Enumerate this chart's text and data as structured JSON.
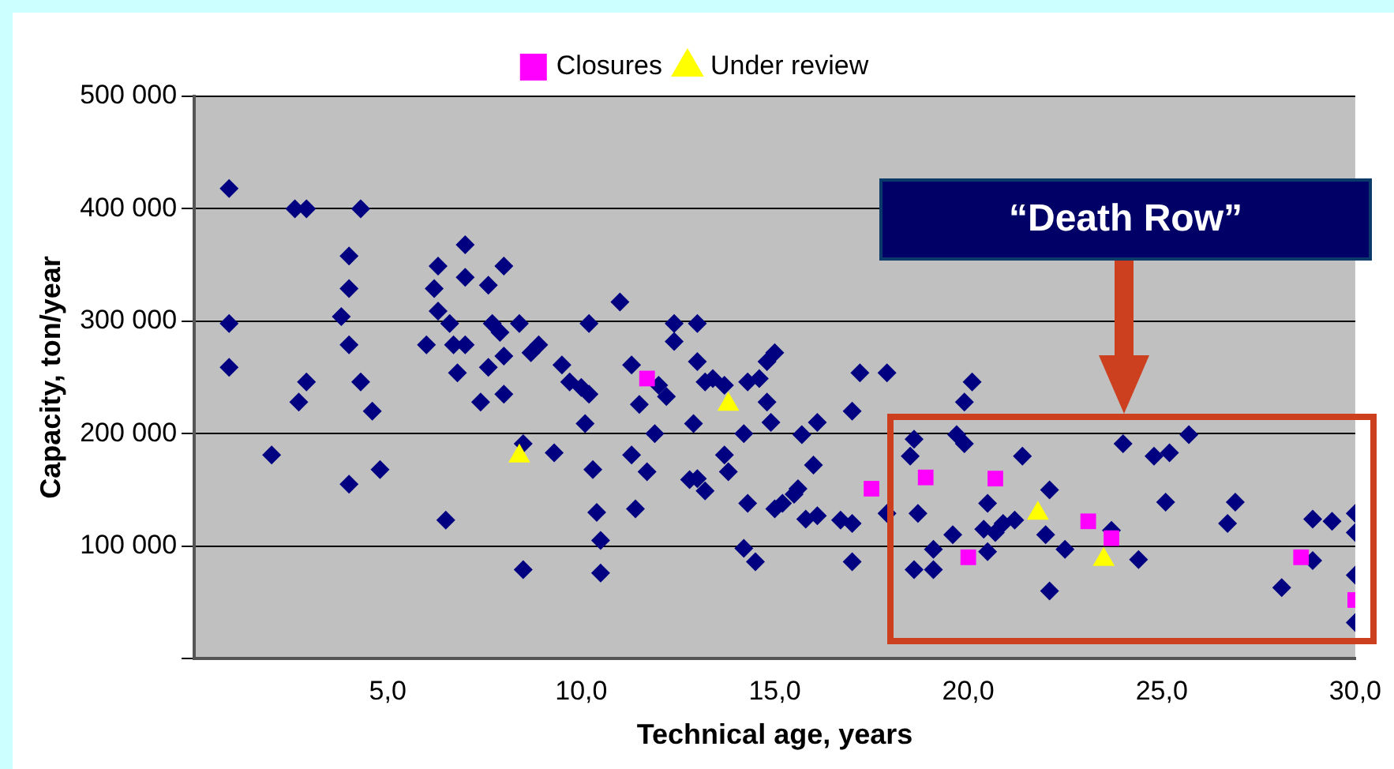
{
  "chart_data": {
    "type": "scatter",
    "xlabel": "Technical age, years",
    "ylabel": "Capacity, ton/year",
    "xlim": [
      0,
      30
    ],
    "xticks": [
      {
        "value": 0,
        "label": null
      },
      {
        "value": 5,
        "label": "5,0"
      },
      {
        "value": 10,
        "label": "10,0"
      },
      {
        "value": 15,
        "label": "15,0"
      },
      {
        "value": 20,
        "label": "20,0"
      },
      {
        "value": 25,
        "label": "25,0"
      },
      {
        "value": 30,
        "label": "30,0"
      }
    ],
    "ylim": [
      0,
      500000
    ],
    "yticks": [
      {
        "value": 0,
        "label": null
      },
      {
        "value": 100000,
        "label": "100 000"
      },
      {
        "value": 200000,
        "label": "200 000"
      },
      {
        "value": 300000,
        "label": "300 000"
      },
      {
        "value": 400000,
        "label": "400 000"
      },
      {
        "value": 500000,
        "label": "500 000"
      }
    ],
    "grid": "y",
    "legend": "top",
    "annotations": [
      "“Death Row”"
    ],
    "series": [
      {
        "name": "Closures",
        "color": "#ff00ff",
        "marker": "square",
        "x": [
          11.7,
          17.5,
          18.9,
          20.0,
          20.7,
          23.1,
          23.7,
          28.6,
          30.0
        ],
        "values": [
          249000,
          151000,
          161000,
          90000,
          160000,
          122000,
          107000,
          90000,
          52000
        ]
      },
      {
        "name": "Under review",
        "color": "#ffff00",
        "marker": "triangle",
        "x": [
          8.4,
          13.8,
          21.8,
          23.5
        ],
        "values": [
          180000,
          226000,
          129000,
          88000
        ]
      },
      {
        "color": "#000080",
        "marker": "diamond",
        "x": [
          0.9,
          2.6,
          2.9,
          4.3,
          0.9,
          0.9,
          4.0,
          4.0,
          3.8,
          4.0,
          2.9,
          4.3,
          2.7,
          4.6,
          7.0,
          6.3,
          8.0,
          6.2,
          7.0,
          7.6,
          6.3,
          6.6,
          6.0,
          6.7,
          7.0,
          6.8,
          7.7,
          7.9,
          8.4,
          7.6,
          8.0,
          8.7,
          8.9,
          7.4,
          8.0,
          9.5,
          9.7,
          10.0,
          10.2,
          10.2,
          11.0,
          11.3,
          11.5,
          12.4,
          13.0,
          12.4,
          13.0,
          13.2,
          13.4,
          13.7,
          14.3,
          12.0,
          12.2,
          2.0,
          4.0,
          4.8,
          6.5,
          8.5,
          8.5,
          9.3,
          10.1,
          10.3,
          10.4,
          10.5,
          10.5,
          11.3,
          11.7,
          11.4,
          11.9,
          12.8,
          13.0,
          13.2,
          12.9,
          14.2,
          13.7,
          13.8,
          14.3,
          14.2,
          14.5,
          15.0,
          14.8,
          14.6,
          14.8,
          17.2,
          17.9,
          20.1,
          19.9,
          14.9,
          15.0,
          15.2,
          15.5,
          15.6,
          15.8,
          16.1,
          16.0,
          15.7,
          16.1,
          17.0,
          16.7,
          17.0,
          17.0,
          17.9,
          18.6,
          18.5,
          18.7,
          19.1,
          19.1,
          18.6,
          19.6,
          19.7,
          19.9,
          20.5,
          20.4,
          20.7,
          20.5,
          20.9,
          21.2,
          21.4,
          22.1,
          22.0,
          22.5,
          22.1,
          23.7,
          24.0,
          24.4,
          24.8,
          25.2,
          25.1,
          25.7,
          26.9,
          26.7,
          28.1,
          28.9,
          28.9,
          29.4,
          30.0,
          30.0,
          30.0,
          30.0
        ],
        "values": [
          418000,
          400000,
          400000,
          400000,
          298000,
          259000,
          358000,
          329000,
          304000,
          279000,
          246000,
          246000,
          228000,
          220000,
          368000,
          349000,
          349000,
          329000,
          339000,
          332000,
          309000,
          298000,
          279000,
          279000,
          279000,
          254000,
          298000,
          290000,
          298000,
          259000,
          269000,
          272000,
          279000,
          228000,
          235000,
          261000,
          246000,
          241000,
          235000,
          298000,
          317000,
          261000,
          226000,
          298000,
          298000,
          282000,
          264000,
          246000,
          249000,
          243000,
          246000,
          243000,
          233000,
          181000,
          155000,
          168000,
          123000,
          191000,
          79000,
          183000,
          209000,
          168000,
          130000,
          105000,
          76000,
          181000,
          166000,
          133000,
          200000,
          159000,
          160000,
          149000,
          209000,
          200000,
          181000,
          166000,
          138000,
          98000,
          86000,
          272000,
          264000,
          249000,
          228000,
          254000,
          254000,
          246000,
          228000,
          210000,
          133000,
          138000,
          146000,
          151000,
          124000,
          127000,
          172000,
          199000,
          210000,
          220000,
          123000,
          120000,
          86000,
          129000,
          195000,
          180000,
          129000,
          97000,
          79000,
          79000,
          110000,
          199000,
          191000,
          138000,
          115000,
          112000,
          95000,
          120000,
          123000,
          180000,
          150000,
          110000,
          97000,
          60000,
          114000,
          191000,
          88000,
          180000,
          183000,
          139000,
          199000,
          139000,
          120000,
          63000,
          87000,
          124000,
          122000,
          129000,
          112000,
          74000,
          32000
        ]
      }
    ]
  }
}
